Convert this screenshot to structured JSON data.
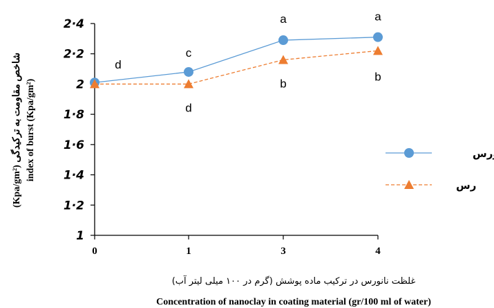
{
  "chart_data": {
    "type": "line",
    "categories": [
      "0",
      "1",
      "3",
      "4"
    ],
    "y_ticks": [
      "1",
      "1·2",
      "1·4",
      "1·6",
      "1·8",
      "2",
      "2·2",
      "2·4"
    ],
    "ylim": [
      1,
      2.4
    ],
    "xlabel_fa": "غلظت نانورس در ترکیب ماده پوشش (گرم در ۱۰۰ میلی لیتر آب)",
    "xlabel_en": "Concentration of nanoclay in coating material (gr/100 ml of water)",
    "ylabel_fa": "شاخص مقاومت به ترکیدگی (Kpa/gm²)",
    "ylabel_en": "index of burst (Kpa/gm²)",
    "legend_position": "right",
    "series": [
      {
        "name": "نانورس",
        "color": "#5B9BD5",
        "marker": "circle",
        "dash": "solid",
        "values": [
          2.01,
          2.08,
          2.29,
          2.31
        ],
        "labels": [
          "d",
          "c",
          "a",
          "a"
        ]
      },
      {
        "name": "رس",
        "color": "#ED7D31",
        "marker": "triangle",
        "dash": "dashed",
        "values": [
          2.0,
          2.0,
          2.16,
          2.22
        ],
        "labels": [
          "",
          "d",
          "b",
          "b"
        ]
      }
    ]
  }
}
